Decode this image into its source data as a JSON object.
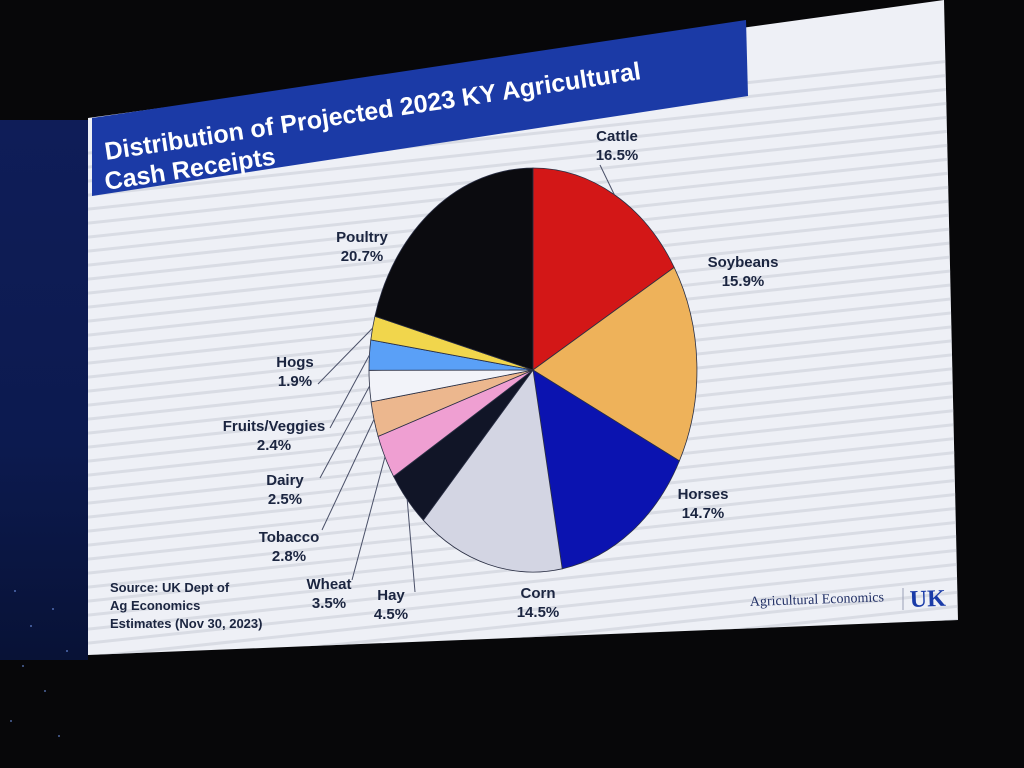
{
  "slide": {
    "title_line1": "Distribution of Projected 2023 KY Agricultural",
    "title_line2": "Cash Receipts",
    "source_line1": "Source: UK Dept of",
    "source_line2": "Ag Economics",
    "source_line3": "Estimates (Nov 30, 2023)",
    "footer_text": "Agricultural Economics",
    "logo_text": "UK"
  },
  "colors": {
    "title_bar": "#1b3aa6",
    "slide_background": "#eef0f6",
    "stripe": "#c9ccd6"
  },
  "chart_data": {
    "type": "pie",
    "title": "Distribution of Projected 2023 KY Agricultural Cash Receipts",
    "slices": [
      {
        "label": "Cattle",
        "percent_label": "16.5%",
        "value": 16.5,
        "color": "#d31717"
      },
      {
        "label": "Soybeans",
        "percent_label": "15.9%",
        "value": 15.9,
        "color": "#eeb25a"
      },
      {
        "label": "Horses",
        "percent_label": "14.7%",
        "value": 14.7,
        "color": "#0b13b0"
      },
      {
        "label": "Corn",
        "percent_label": "14.5%",
        "value": 14.5,
        "color": "#d3d5e3"
      },
      {
        "label": "Hay",
        "percent_label": "4.5%",
        "value": 4.5,
        "color": "#111527"
      },
      {
        "label": "Wheat",
        "percent_label": "3.5%",
        "value": 3.5,
        "color": "#ef9fd2"
      },
      {
        "label": "Tobacco",
        "percent_label": "2.8%",
        "value": 2.8,
        "color": "#ecb78e"
      },
      {
        "label": "Dairy",
        "percent_label": "2.5%",
        "value": 2.5,
        "color": "#f2f3f9"
      },
      {
        "label": "Fruits/Veggies",
        "percent_label": "2.4%",
        "value": 2.4,
        "color": "#5aa0f7"
      },
      {
        "label": "Hogs",
        "percent_label": "1.9%",
        "value": 1.9,
        "color": "#f1d64c"
      },
      {
        "label": "Poultry",
        "percent_label": "20.7%",
        "value": 20.7,
        "color": "#0b0b0f"
      }
    ],
    "legend": "none",
    "start": "top, clockwise"
  }
}
